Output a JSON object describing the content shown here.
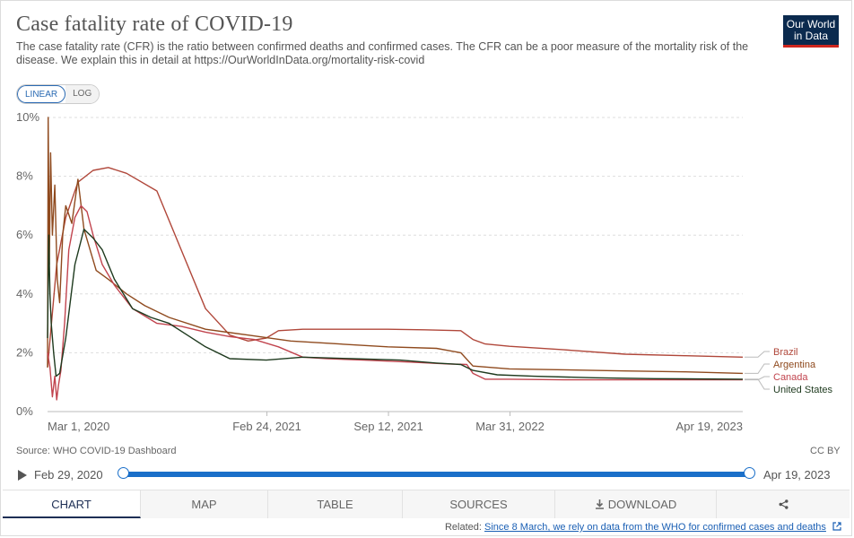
{
  "header": {
    "title": "Case fatality rate of COVID-19",
    "subtitle": "The case fatality rate (CFR) is the ratio between confirmed deaths and confirmed cases. The CFR can be a poor measure of the mortality risk of the disease. We explain this in detail at https://OurWorldInData.org/mortality-risk-covid",
    "logo_line1": "Our World",
    "logo_line2": "in Data"
  },
  "scale_toggle": {
    "linear": "LINEAR",
    "log": "LOG",
    "selected": "LINEAR"
  },
  "chart_data": {
    "type": "line",
    "title": "Case fatality rate of COVID-19",
    "ylabel": "",
    "xlabel": "",
    "ylim": [
      0,
      10
    ],
    "y_ticks": [
      "0%",
      "2%",
      "4%",
      "6%",
      "8%",
      "10%"
    ],
    "x_ticks": [
      {
        "label": "Mar 1, 2020",
        "day": 1
      },
      {
        "label": "Feb 24, 2021",
        "day": 361
      },
      {
        "label": "Sep 12, 2021",
        "day": 561
      },
      {
        "label": "Mar 31, 2022",
        "day": 761
      },
      {
        "label": "Apr 19, 2023",
        "day": 1144
      }
    ],
    "x_unit": "days since Feb 29, 2020",
    "series": [
      {
        "name": "Brazil",
        "color": "#b0473a",
        "x": [
          0,
          15,
          30,
          50,
          75,
          100,
          130,
          180,
          220,
          260,
          300,
          330,
          360,
          380,
          420,
          480,
          560,
          620,
          680,
          700,
          720,
          760,
          850,
          950,
          1050,
          1144
        ],
        "y": [
          1.5,
          5.0,
          6.6,
          7.8,
          8.2,
          8.3,
          8.1,
          7.5,
          5.5,
          3.5,
          2.6,
          2.4,
          2.5,
          2.75,
          2.8,
          2.8,
          2.8,
          2.78,
          2.75,
          2.45,
          2.3,
          2.22,
          2.1,
          1.95,
          1.9,
          1.85
        ]
      },
      {
        "name": "Argentina",
        "color": "#8f4a1e",
        "x": [
          0,
          1,
          3,
          5,
          8,
          12,
          16,
          20,
          25,
          30,
          40,
          50,
          60,
          80,
          100,
          130,
          160,
          200,
          260,
          330,
          400,
          480,
          560,
          640,
          680,
          700,
          760,
          850,
          950,
          1050,
          1144
        ],
        "y": [
          1.5,
          10.0,
          5.0,
          8.8,
          6.0,
          7.7,
          4.5,
          3.7,
          6.0,
          7.0,
          6.4,
          7.9,
          6.2,
          4.8,
          4.5,
          4.0,
          3.6,
          3.2,
          2.8,
          2.6,
          2.4,
          2.3,
          2.2,
          2.15,
          2.0,
          1.55,
          1.45,
          1.42,
          1.38,
          1.35,
          1.3
        ]
      },
      {
        "name": "Canada",
        "color": "#c1444e",
        "x": [
          0,
          4,
          8,
          12,
          15,
          18,
          22,
          28,
          35,
          45,
          55,
          65,
          75,
          90,
          110,
          140,
          180,
          220,
          260,
          300,
          340,
          380,
          420,
          460,
          520,
          600,
          660,
          690,
          700,
          720,
          760,
          850,
          950,
          1050,
          1144
        ],
        "y": [
          2.0,
          1.5,
          0.5,
          1.2,
          0.4,
          0.9,
          1.4,
          3.0,
          5.5,
          6.6,
          7.0,
          6.8,
          6.0,
          5.0,
          4.3,
          3.5,
          3.0,
          2.9,
          2.7,
          2.55,
          2.45,
          2.2,
          1.85,
          1.8,
          1.75,
          1.68,
          1.62,
          1.6,
          1.3,
          1.1,
          1.1,
          1.08,
          1.08,
          1.08,
          1.08
        ]
      },
      {
        "name": "United States",
        "color": "#1e3a1e",
        "x": [
          0,
          2,
          4,
          6,
          10,
          14,
          20,
          30,
          45,
          60,
          75,
          90,
          110,
          140,
          170,
          200,
          230,
          260,
          300,
          360,
          420,
          500,
          580,
          640,
          680,
          700,
          740,
          800,
          900,
          1000,
          1144
        ],
        "y": [
          2.5,
          6.0,
          4.0,
          3.0,
          2.0,
          1.2,
          1.3,
          2.5,
          5.0,
          6.2,
          5.9,
          5.5,
          4.5,
          3.5,
          3.2,
          3.0,
          2.6,
          2.2,
          1.8,
          1.75,
          1.85,
          1.8,
          1.75,
          1.65,
          1.6,
          1.4,
          1.25,
          1.2,
          1.15,
          1.12,
          1.1
        ]
      }
    ]
  },
  "footer": {
    "source": "Source: WHO COVID-19 Dashboard",
    "license": "CC BY"
  },
  "timeline": {
    "start": "Feb 29, 2020",
    "end": "Apr 19, 2023"
  },
  "tabs": [
    "CHART",
    "MAP",
    "TABLE",
    "SOURCES",
    "DOWNLOAD",
    ""
  ],
  "related": {
    "prefix": "Related:",
    "link": "Since 8 March, we rely on data from the WHO for confirmed cases and deaths"
  },
  "icons": {
    "play": "play-icon",
    "download": "download-icon",
    "share": "share-icon",
    "external": "external-link-icon"
  }
}
